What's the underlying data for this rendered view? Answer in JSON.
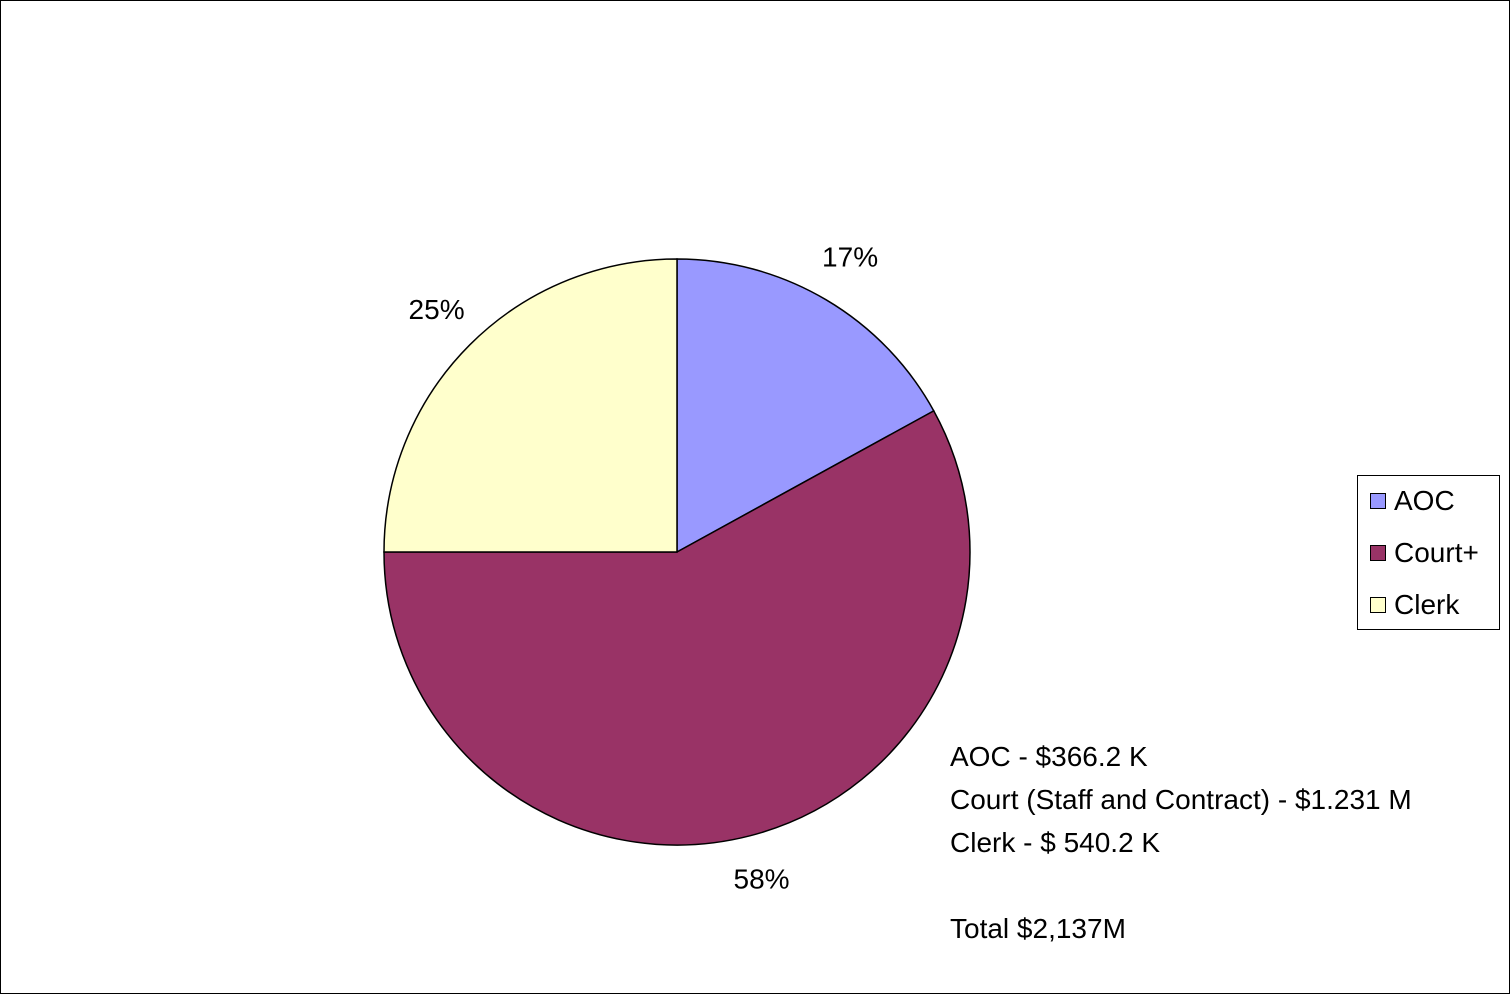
{
  "chart_data": {
    "type": "pie",
    "title": "",
    "slices": [
      {
        "label": "AOC",
        "value": 17,
        "display": "17%",
        "color": "#9999FF"
      },
      {
        "label": "Court+",
        "value": 58,
        "display": "58%",
        "color": "#993366"
      },
      {
        "label": "Clerk",
        "value": 25,
        "display": "25%",
        "color": "#FFFFCC"
      }
    ],
    "legend": {
      "placement": "right",
      "entries": [
        "AOC",
        "Court+",
        "Clerk"
      ]
    }
  },
  "notes": {
    "aoc": "AOC - $366.2 K",
    "court": "Court (Staff and Contract) - $1.231 M",
    "clerk": "Clerk - $ 540.2 K",
    "total": "Total $2,137M"
  }
}
